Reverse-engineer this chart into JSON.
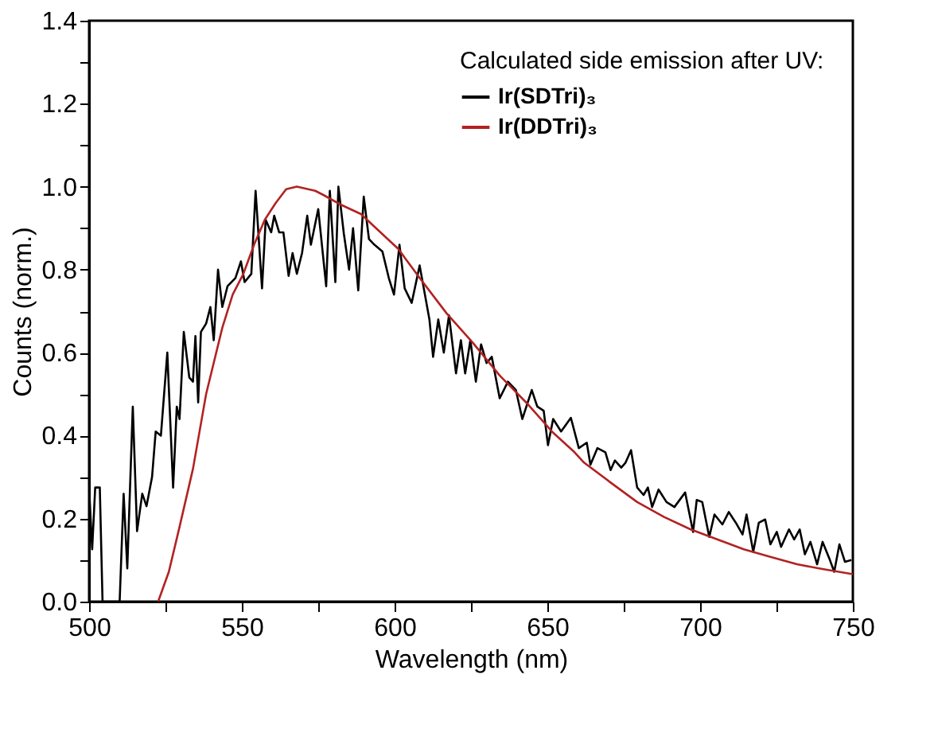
{
  "chart_data": {
    "type": "line",
    "xlabel": "Wavelength (nm)",
    "ylabel": "Counts (norm.)",
    "legend_title": "Calculated side emission after UV:",
    "legend": "top right",
    "grid": false,
    "marker": "none",
    "line_style": "solid",
    "xlim": [
      500,
      750
    ],
    "ylim": [
      0,
      1.4
    ],
    "xticks": [
      500,
      {
        "value": 525,
        "label": null
      },
      550,
      {
        "value": 575,
        "label": null
      },
      600,
      {
        "value": 625,
        "label": null
      },
      650,
      {
        "value": 675,
        "label": null
      },
      700,
      {
        "value": 725,
        "label": null
      },
      750
    ],
    "yticks": [
      {
        "value": 0,
        "label": "0.0"
      },
      {
        "value": 0.1,
        "label": null
      },
      {
        "value": 0.2,
        "label": "0.2"
      },
      {
        "value": 0.3,
        "label": null
      },
      {
        "value": 0.4,
        "label": "0.4"
      },
      {
        "value": 0.5,
        "label": null
      },
      {
        "value": 0.6,
        "label": "0.6"
      },
      {
        "value": 0.7,
        "label": null
      },
      {
        "value": 0.8,
        "label": "0.8"
      },
      {
        "value": 0.9,
        "label": null
      },
      {
        "value": 1.0,
        "label": "1.0"
      },
      {
        "value": 1.1,
        "label": null
      },
      {
        "value": 1.2,
        "label": "1.2"
      },
      {
        "value": 1.3,
        "label": null
      },
      {
        "value": 1.4,
        "label": "1.4"
      }
    ],
    "series": [
      {
        "name": "Ir(SDTri)₃",
        "color": "#000000",
        "x": [
          500,
          501,
          502,
          503.5,
          504.4,
          510,
          511.3,
          512.5,
          514.3,
          515.7,
          517.4,
          518.8,
          520.6,
          521.8,
          523.5,
          525.6,
          527.5,
          528.7,
          529.6,
          531,
          532.8,
          534,
          534.8,
          535.7,
          536.6,
          538.3,
          539.7,
          540.8,
          542.2,
          543.6,
          545.3,
          547.9,
          549.7,
          550.9,
          553.1,
          554.5,
          556.6,
          557.8,
          559.6,
          560.6,
          562.2,
          563.6,
          565.3,
          566.6,
          568,
          569.7,
          571.4,
          572.6,
          575,
          577.6,
          578.8,
          580.6,
          581.6,
          583.4,
          585.1,
          586.4,
          588.1,
          589.9,
          591.6,
          593.4,
          596,
          598.1,
          599.8,
          601.6,
          603.3,
          605.6,
          608.2,
          611.4,
          612.6,
          614.3,
          616.1,
          617.8,
          620.1,
          621.7,
          623.1,
          624.8,
          626.6,
          628.3,
          630.1,
          631.8,
          634.4,
          637.1,
          639.7,
          641.8,
          644.9,
          646.7,
          648.8,
          650.2,
          651.9,
          654.5,
          657.7,
          660.3,
          662.9,
          664.1,
          666.4,
          669,
          670.7,
          672.1,
          674.2,
          675.6,
          677.4,
          679.4,
          681.5,
          682.9,
          684.3,
          686.4,
          689,
          691.6,
          695.1,
          697.7,
          698.9,
          700.7,
          703,
          704.7,
          707.3,
          709.4,
          711.7,
          713.9,
          715.2,
          717.4,
          719.2,
          721.3,
          723,
          725.1,
          726.5,
          729.1,
          730.8,
          732.6,
          734.3,
          736.1,
          738.3,
          740.1,
          742.5,
          743.9,
          745.6,
          747.4,
          749.5
        ],
        "values": [
          0.275,
          0.126,
          0.275,
          0.275,
          0,
          0,
          0.26,
          0.08,
          0.47,
          0.17,
          0.26,
          0.23,
          0.3,
          0.41,
          0.4,
          0.6,
          0.275,
          0.47,
          0.44,
          0.65,
          0.54,
          0.53,
          0.64,
          0.48,
          0.65,
          0.67,
          0.71,
          0.63,
          0.8,
          0.71,
          0.76,
          0.78,
          0.82,
          0.77,
          0.79,
          0.99,
          0.755,
          0.92,
          0.89,
          0.93,
          0.89,
          0.89,
          0.785,
          0.84,
          0.79,
          0.84,
          0.93,
          0.86,
          0.946,
          0.76,
          0.99,
          0.77,
          1.0,
          0.886,
          0.8,
          0.9,
          0.75,
          0.976,
          0.874,
          0.86,
          0.844,
          0.78,
          0.74,
          0.86,
          0.755,
          0.72,
          0.81,
          0.68,
          0.59,
          0.68,
          0.6,
          0.69,
          0.55,
          0.63,
          0.55,
          0.63,
          0.53,
          0.62,
          0.575,
          0.59,
          0.49,
          0.53,
          0.51,
          0.44,
          0.51,
          0.47,
          0.46,
          0.377,
          0.44,
          0.41,
          0.443,
          0.37,
          0.383,
          0.33,
          0.37,
          0.36,
          0.317,
          0.34,
          0.323,
          0.335,
          0.365,
          0.275,
          0.257,
          0.275,
          0.228,
          0.27,
          0.24,
          0.228,
          0.263,
          0.168,
          0.245,
          0.24,
          0.156,
          0.21,
          0.186,
          0.216,
          0.19,
          0.162,
          0.21,
          0.12,
          0.19,
          0.198,
          0.138,
          0.168,
          0.132,
          0.174,
          0.15,
          0.174,
          0.114,
          0.144,
          0.09,
          0.144,
          0.1,
          0.072,
          0.138,
          0.096,
          0.1
        ]
      },
      {
        "name": "Ir(DDTri)₃",
        "color": "#b22222",
        "x": [
          522.6,
          526.1,
          529.6,
          534,
          538.3,
          543.6,
          547,
          550.5,
          554,
          557.5,
          561,
          564.5,
          568,
          574,
          576.7,
          582,
          589,
          594.2,
          601.2,
          608.2,
          617,
          625.7,
          634.4,
          643.2,
          651.9,
          658.9,
          662,
          670.7,
          679.4,
          688.2,
          696.9,
          705.6,
          714.3,
          723,
          731.7,
          740.4,
          750
        ],
        "values": [
          0,
          0.072,
          0.18,
          0.32,
          0.5,
          0.66,
          0.74,
          0.79,
          0.86,
          0.92,
          0.96,
          0.994,
          1.0,
          0.99,
          0.98,
          0.958,
          0.934,
          0.898,
          0.85,
          0.78,
          0.695,
          0.623,
          0.545,
          0.479,
          0.407,
          0.36,
          0.335,
          0.287,
          0.24,
          0.204,
          0.174,
          0.15,
          0.126,
          0.108,
          0.09,
          0.078,
          0.066
        ]
      }
    ]
  }
}
